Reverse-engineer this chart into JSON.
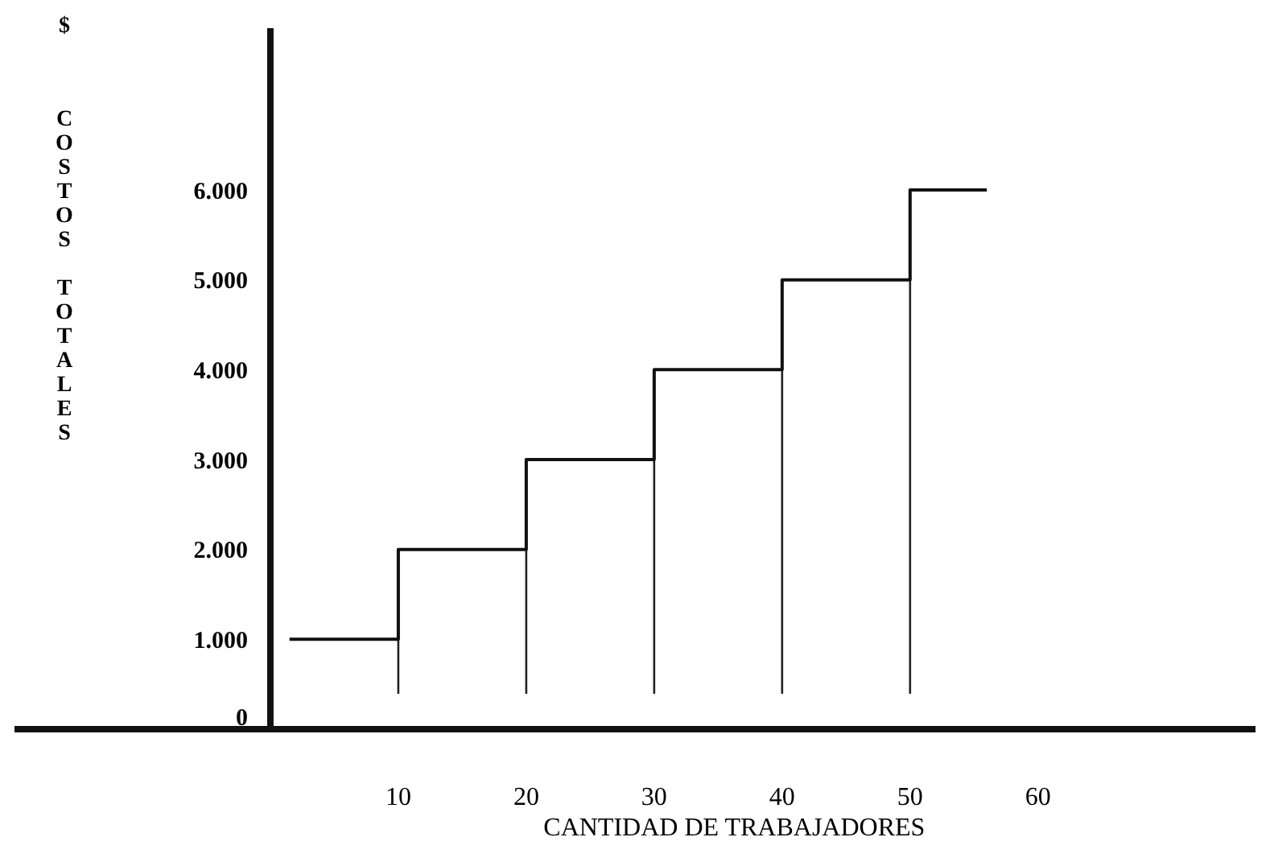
{
  "chart_data": {
    "type": "step",
    "xlabel": "CANTIDAD DE TRABAJADORES",
    "ylabel": "COSTOS TOTALES",
    "annotations": [
      "$"
    ],
    "xlim": [
      -20,
      77
    ],
    "xticks": [
      10,
      20,
      30,
      40,
      50,
      60
    ],
    "ylim": [
      0,
      7800
    ],
    "yticks": [
      0,
      {
        "value": 1000,
        "label": "1.000"
      },
      {
        "value": 2000,
        "label": "2.000"
      },
      {
        "value": 3000,
        "label": "3.000"
      },
      {
        "value": 4000,
        "label": "4.000"
      },
      {
        "value": 5000,
        "label": "5.000"
      },
      {
        "value": 6000,
        "label": "6.000"
      }
    ],
    "series": [
      {
        "color": "#111111",
        "x": [
          1.5,
          10,
          20,
          30,
          40,
          50,
          56
        ],
        "values": [
          1000,
          2000,
          3000,
          4000,
          5000,
          6000,
          6000
        ]
      }
    ],
    "ref_lines": [
      {
        "axis": "x",
        "value": 10
      },
      {
        "axis": "x",
        "value": 20
      },
      {
        "axis": "x",
        "value": 30
      },
      {
        "axis": "x",
        "value": 40
      },
      {
        "axis": "x",
        "value": 50
      }
    ],
    "grid": false
  }
}
